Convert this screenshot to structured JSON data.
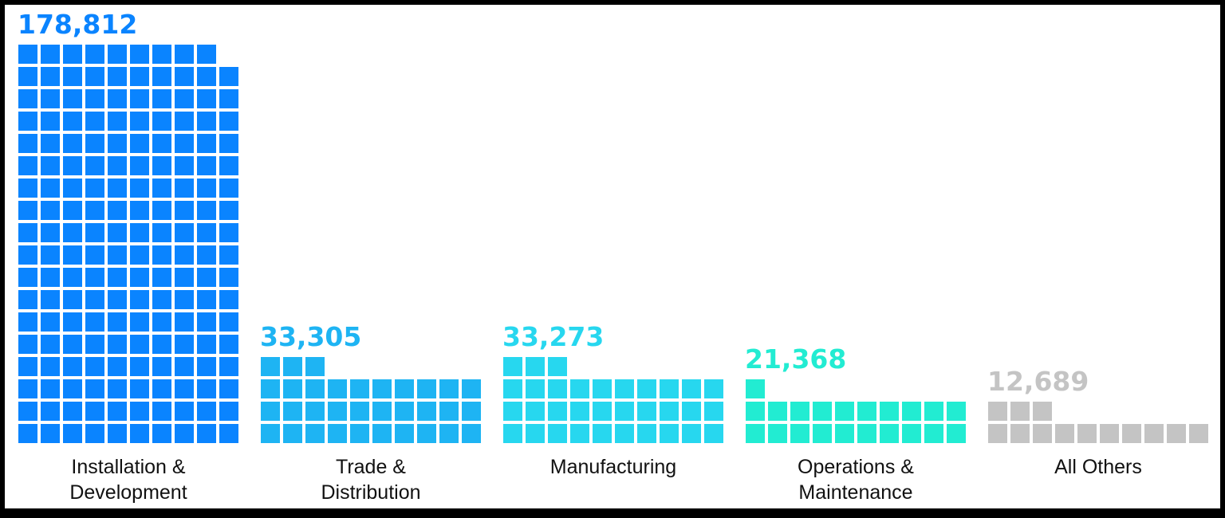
{
  "chart_data": {
    "type": "waffle-bar",
    "categories": [
      "Installation & Development",
      "Trade & Distribution",
      "Manufacturing",
      "Operations & Maintenance",
      "All Others"
    ],
    "values": [
      178812,
      33305,
      33273,
      21368,
      12689
    ],
    "value_labels": [
      "178,812",
      "33,305",
      "33,273",
      "21,368",
      "12,689"
    ],
    "label_lines": [
      [
        "Installation &",
        "Development"
      ],
      [
        "Trade &",
        "Distribution"
      ],
      [
        "Manufacturing"
      ],
      [
        "Operations &",
        "Maintenance"
      ],
      [
        "All Others"
      ]
    ],
    "colors": [
      "#0a84ff",
      "#1eb4f3",
      "#27d7ef",
      "#22ecd2",
      "#c4c4c4"
    ],
    "units_per_square": 1000,
    "squares_per_row": 10
  }
}
